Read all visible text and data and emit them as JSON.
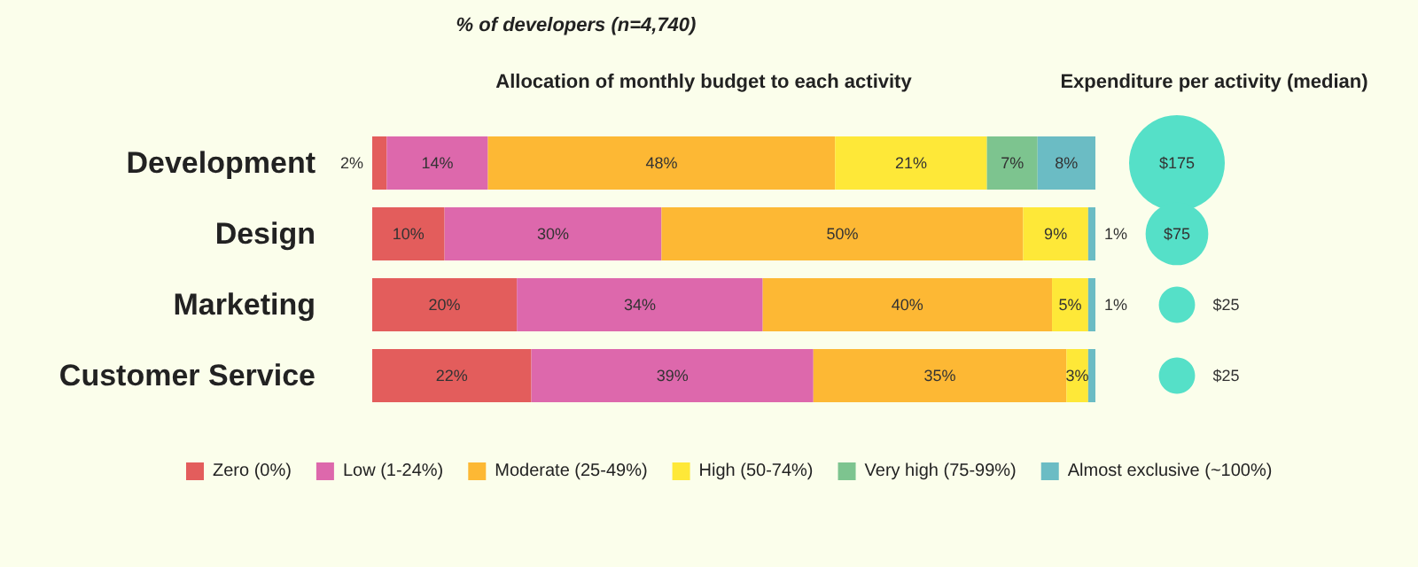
{
  "chart_data": [
    {
      "type": "bar",
      "orientation": "horizontal",
      "stacked": true,
      "title": "% of developers (n=4,740)",
      "subtitle": "Allocation of monthly budget to each activity",
      "categories": [
        "Development",
        "Design",
        "Marketing",
        "Customer Service"
      ],
      "legend": "bottom",
      "series": [
        {
          "name": "Zero (0%)",
          "color": "#e35d5c",
          "values": [
            2,
            10,
            20,
            22
          ],
          "value_labels": [
            "2%",
            "10%",
            "20%",
            "22%"
          ]
        },
        {
          "name": "Low (1-24%)",
          "color": "#dd68ac",
          "values": [
            14,
            30,
            34,
            39
          ],
          "value_labels": [
            "14%",
            "30%",
            "34%",
            "39%"
          ]
        },
        {
          "name": "Moderate (25-49%)",
          "color": "#fdb834",
          "values": [
            48,
            50,
            40,
            35
          ],
          "value_labels": [
            "48%",
            "50%",
            "40%",
            "35%"
          ]
        },
        {
          "name": "High (50-74%)",
          "color": "#fee838",
          "values": [
            21,
            9,
            5,
            3
          ],
          "value_labels": [
            "21%",
            "9%",
            "5%",
            "3%"
          ]
        },
        {
          "name": "Very high (75-99%)",
          "color": "#7dc48f",
          "values": [
            7,
            null,
            null,
            null
          ],
          "value_labels": [
            "7%",
            null,
            null,
            null
          ]
        },
        {
          "name": "Almost exclusive (~100%)",
          "color": "#6bbcc4",
          "values": [
            8,
            1,
            1,
            1
          ],
          "value_labels": [
            "8%",
            "1%",
            "1%",
            null
          ]
        }
      ]
    },
    {
      "type": "other",
      "title": "Expenditure per activity (median)",
      "categories": [
        null,
        null,
        null,
        null
      ],
      "values": [
        175,
        75,
        25,
        25
      ],
      "value_labels": [
        "$175",
        "$75",
        "$25",
        "$25"
      ],
      "color": "#55e0c8"
    }
  ]
}
